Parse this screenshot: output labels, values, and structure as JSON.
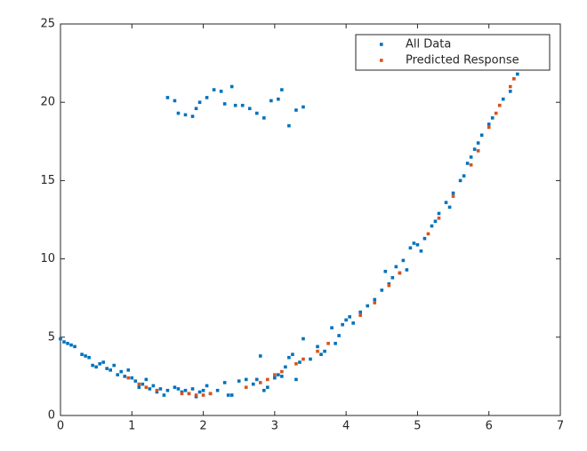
{
  "chart_data": {
    "type": "scatter",
    "xlim": [
      0,
      7
    ],
    "xticks": [
      0,
      1,
      2,
      3,
      4,
      5,
      6,
      7
    ],
    "ylim": [
      0,
      25
    ],
    "yticks": [
      0,
      5,
      10,
      15,
      20,
      25
    ],
    "legend": "northeast",
    "series": [
      {
        "name": "All Data",
        "color": "#0072BD",
        "x": [
          0.0,
          0.05,
          0.1,
          0.15,
          0.2,
          0.3,
          0.35,
          0.4,
          0.45,
          0.5,
          0.55,
          0.6,
          0.65,
          0.7,
          0.75,
          0.8,
          0.85,
          0.9,
          0.95,
          1.0,
          1.05,
          1.1,
          1.15,
          1.2,
          1.25,
          1.3,
          1.35,
          1.4,
          1.45,
          1.5,
          1.6,
          1.65,
          1.7,
          1.75,
          1.8,
          1.85,
          1.9,
          1.95,
          2.0,
          2.05,
          2.1,
          2.2,
          2.3,
          2.35,
          2.4,
          2.5,
          2.6,
          2.7,
          2.75,
          2.8,
          2.85,
          2.9,
          3.0,
          3.05,
          3.1,
          3.15,
          3.2,
          3.25,
          3.3,
          3.35,
          3.4,
          3.5,
          3.6,
          3.65,
          3.7,
          3.8,
          3.85,
          3.9,
          3.95,
          4.0,
          4.05,
          4.1,
          4.2,
          4.3,
          4.4,
          4.5,
          4.55,
          4.6,
          4.65,
          4.7,
          4.75,
          4.8,
          4.85,
          4.9,
          4.95,
          5.0,
          5.05,
          5.1,
          5.2,
          5.25,
          5.3,
          5.4,
          5.45,
          5.5,
          5.6,
          5.65,
          5.7,
          5.75,
          5.8,
          5.85,
          5.9,
          6.0,
          6.05,
          6.15,
          6.2,
          6.3,
          6.35,
          6.4,
          1.5,
          1.6,
          1.65,
          1.75,
          1.85,
          1.9,
          1.95,
          2.05,
          2.15,
          2.25,
          2.3,
          2.4,
          2.45,
          2.55,
          2.65,
          2.75,
          2.85,
          2.95,
          3.05,
          3.1,
          3.2,
          3.3,
          3.4
        ],
        "values": [
          4.9,
          4.7,
          4.6,
          4.5,
          4.4,
          3.9,
          3.8,
          3.7,
          3.2,
          3.1,
          3.3,
          3.4,
          3.0,
          2.9,
          3.2,
          2.6,
          2.8,
          2.5,
          2.9,
          2.4,
          2.2,
          1.8,
          2.0,
          2.3,
          1.7,
          1.9,
          1.5,
          1.7,
          1.3,
          1.6,
          1.8,
          1.7,
          1.5,
          1.6,
          1.4,
          1.7,
          1.2,
          1.5,
          1.6,
          1.9,
          1.4,
          1.6,
          2.1,
          1.3,
          1.3,
          2.2,
          2.3,
          2.0,
          2.3,
          3.8,
          1.6,
          1.8,
          2.4,
          2.6,
          2.5,
          3.1,
          3.7,
          3.9,
          2.3,
          3.4,
          4.9,
          3.6,
          4.4,
          3.9,
          4.1,
          5.6,
          4.6,
          5.1,
          5.8,
          6.1,
          6.3,
          5.9,
          6.6,
          7.0,
          7.4,
          8.0,
          9.2,
          8.4,
          8.8,
          9.5,
          9.1,
          9.9,
          9.3,
          10.7,
          11.0,
          10.9,
          10.5,
          11.3,
          12.1,
          12.4,
          12.9,
          13.6,
          13.3,
          14.2,
          15.0,
          15.3,
          16.1,
          16.5,
          17.0,
          17.4,
          17.9,
          18.6,
          19.0,
          19.8,
          20.2,
          20.7,
          21.5,
          21.8,
          20.3,
          20.1,
          19.3,
          19.2,
          19.1,
          19.6,
          20.0,
          20.3,
          20.8,
          20.7,
          19.9,
          21.0,
          19.8,
          19.8,
          19.6,
          19.3,
          19.0,
          20.1,
          20.2,
          20.8,
          18.5,
          19.5,
          19.7
        ]
      },
      {
        "name": "Predicted Response",
        "color": "#D95319",
        "x": [
          0.95,
          1.1,
          1.2,
          1.35,
          1.7,
          1.8,
          1.9,
          2.0,
          2.1,
          2.6,
          2.8,
          2.9,
          3.0,
          3.1,
          3.3,
          3.4,
          3.6,
          3.75,
          4.2,
          4.4,
          4.6,
          4.75,
          5.15,
          5.3,
          5.5,
          5.75,
          5.85,
          6.0,
          6.1,
          6.15,
          6.3,
          6.35
        ],
        "values": [
          2.4,
          2.0,
          1.8,
          1.6,
          1.4,
          1.4,
          1.3,
          1.3,
          1.4,
          1.8,
          2.1,
          2.3,
          2.6,
          2.8,
          3.3,
          3.6,
          4.1,
          4.6,
          6.4,
          7.2,
          8.3,
          9.1,
          11.6,
          12.6,
          14.0,
          16.0,
          16.9,
          18.4,
          19.3,
          19.8,
          21.0,
          21.5
        ]
      }
    ]
  }
}
